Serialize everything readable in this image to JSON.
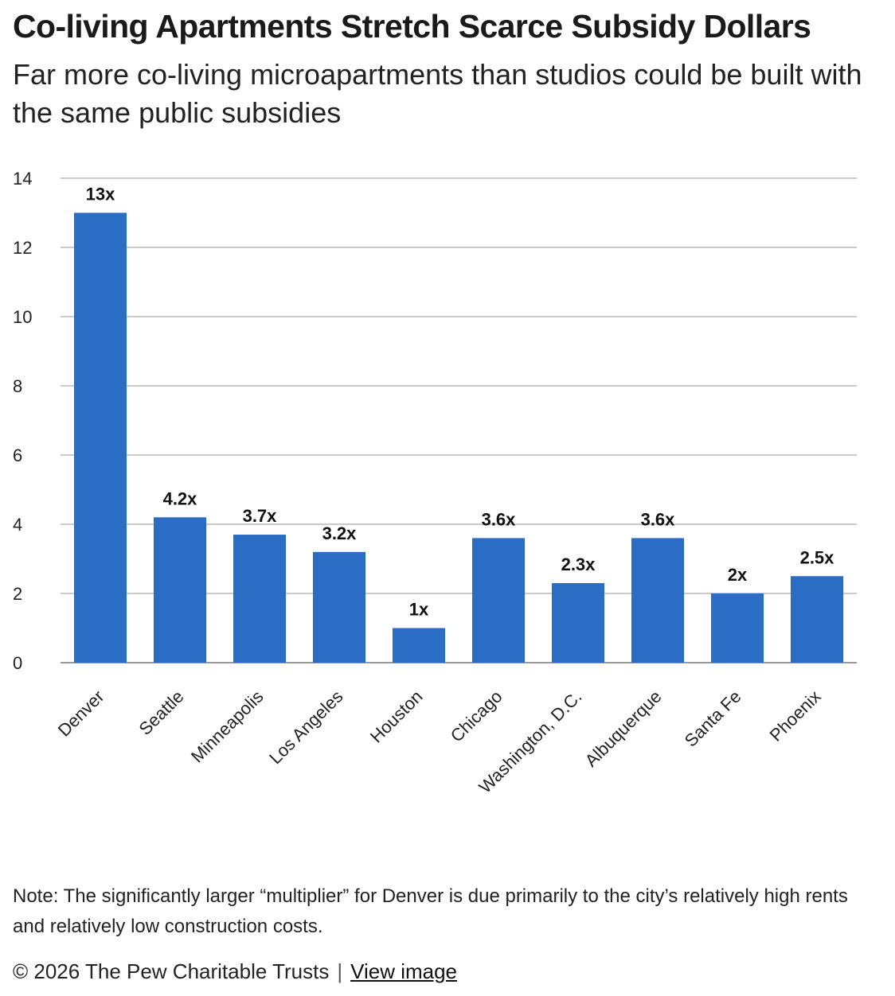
{
  "header": {
    "title": "Co-living Apartments Stretch Scarce Subsidy Dollars",
    "subtitle": "Far more co-living microapartments than studios could be built with the same public subsidies"
  },
  "chart_data": {
    "type": "bar",
    "categories": [
      "Denver",
      "Seattle",
      "Minneapolis",
      "Los Angeles",
      "Houston",
      "Chicago",
      "Washington, D.C.",
      "Albuquerque",
      "Santa Fe",
      "Phoenix"
    ],
    "values": [
      13,
      4.2,
      3.7,
      3.2,
      1,
      3.6,
      2.3,
      3.6,
      2,
      2.5
    ],
    "data_labels": [
      "13x",
      "4.2x",
      "3.7x",
      "3.2x",
      "1x",
      "3.6x",
      "2.3x",
      "3.6x",
      "2x",
      "2.5x"
    ],
    "yticks": [
      0,
      2,
      4,
      6,
      8,
      10,
      12,
      14
    ],
    "ylim": [
      0,
      14
    ],
    "xlabel": "",
    "ylabel": "",
    "grid": true,
    "bar_color": "#2b6cc4"
  },
  "note": "Note: The significantly larger “multiplier” for Denver is due primarily to the city’s relatively high rents and relatively low construction costs.",
  "footer": {
    "copyright": "© 2026 The Pew Charitable Trusts",
    "separator": "|",
    "view_link": "View image"
  }
}
